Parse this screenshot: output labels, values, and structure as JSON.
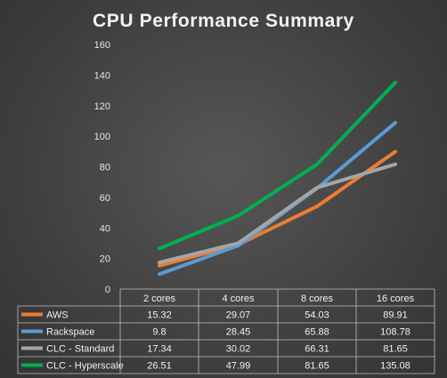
{
  "chart_data": {
    "type": "line",
    "title": "CPU Performance Summary",
    "categories": [
      "2 cores",
      "4 cores",
      "8 cores",
      "16 cores"
    ],
    "ylim": [
      0,
      160
    ],
    "yticks": [
      0,
      20,
      40,
      60,
      80,
      100,
      120,
      140,
      160
    ],
    "grid": false,
    "legend": "data-table-below",
    "series": [
      {
        "name": "AWS",
        "color": "#ed7d31",
        "values": [
          15.32,
          29.07,
          54.03,
          89.91
        ]
      },
      {
        "name": "Rackspace",
        "color": "#5b9bd5",
        "values": [
          9.8,
          28.45,
          65.88,
          108.78
        ]
      },
      {
        "name": "CLC - Standard",
        "color": "#a5a5a5",
        "values": [
          17.34,
          30.02,
          66.31,
          81.65
        ]
      },
      {
        "name": "CLC - Hyperscale",
        "color": "#00b050",
        "values": [
          26.51,
          47.99,
          81.65,
          135.08
        ]
      }
    ]
  },
  "table_values": [
    [
      "15.32",
      "29.07",
      "54.03",
      "89.91"
    ],
    [
      "9.8",
      "28.45",
      "65.88",
      "108.78"
    ],
    [
      "17.34",
      "30.02",
      "66.31",
      "81.65"
    ],
    [
      "26.51",
      "47.99",
      "81.65",
      "135.08"
    ]
  ]
}
